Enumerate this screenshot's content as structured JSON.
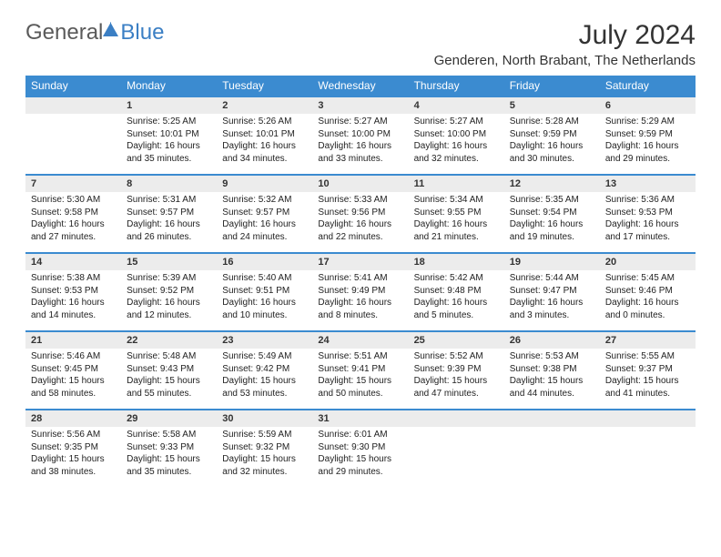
{
  "brand": {
    "part1": "General",
    "part2": "Blue"
  },
  "title": "July 2024",
  "location": "Genderen, North Brabant, The Netherlands",
  "colors": {
    "header_bg": "#3b8bd0",
    "header_text": "#ffffff",
    "daynum_bg": "#ececec",
    "row_border": "#3b8bd0",
    "text": "#222222",
    "logo_gray": "#5a5a5a",
    "logo_blue": "#3b7fc4"
  },
  "day_names": [
    "Sunday",
    "Monday",
    "Tuesday",
    "Wednesday",
    "Thursday",
    "Friday",
    "Saturday"
  ],
  "weeks": [
    {
      "nums": [
        "",
        "1",
        "2",
        "3",
        "4",
        "5",
        "6"
      ],
      "cells": [
        {
          "sunrise": "",
          "sunset": "",
          "daylight": ""
        },
        {
          "sunrise": "Sunrise: 5:25 AM",
          "sunset": "Sunset: 10:01 PM",
          "daylight": "Daylight: 16 hours and 35 minutes."
        },
        {
          "sunrise": "Sunrise: 5:26 AM",
          "sunset": "Sunset: 10:01 PM",
          "daylight": "Daylight: 16 hours and 34 minutes."
        },
        {
          "sunrise": "Sunrise: 5:27 AM",
          "sunset": "Sunset: 10:00 PM",
          "daylight": "Daylight: 16 hours and 33 minutes."
        },
        {
          "sunrise": "Sunrise: 5:27 AM",
          "sunset": "Sunset: 10:00 PM",
          "daylight": "Daylight: 16 hours and 32 minutes."
        },
        {
          "sunrise": "Sunrise: 5:28 AM",
          "sunset": "Sunset: 9:59 PM",
          "daylight": "Daylight: 16 hours and 30 minutes."
        },
        {
          "sunrise": "Sunrise: 5:29 AM",
          "sunset": "Sunset: 9:59 PM",
          "daylight": "Daylight: 16 hours and 29 minutes."
        }
      ]
    },
    {
      "nums": [
        "7",
        "8",
        "9",
        "10",
        "11",
        "12",
        "13"
      ],
      "cells": [
        {
          "sunrise": "Sunrise: 5:30 AM",
          "sunset": "Sunset: 9:58 PM",
          "daylight": "Daylight: 16 hours and 27 minutes."
        },
        {
          "sunrise": "Sunrise: 5:31 AM",
          "sunset": "Sunset: 9:57 PM",
          "daylight": "Daylight: 16 hours and 26 minutes."
        },
        {
          "sunrise": "Sunrise: 5:32 AM",
          "sunset": "Sunset: 9:57 PM",
          "daylight": "Daylight: 16 hours and 24 minutes."
        },
        {
          "sunrise": "Sunrise: 5:33 AM",
          "sunset": "Sunset: 9:56 PM",
          "daylight": "Daylight: 16 hours and 22 minutes."
        },
        {
          "sunrise": "Sunrise: 5:34 AM",
          "sunset": "Sunset: 9:55 PM",
          "daylight": "Daylight: 16 hours and 21 minutes."
        },
        {
          "sunrise": "Sunrise: 5:35 AM",
          "sunset": "Sunset: 9:54 PM",
          "daylight": "Daylight: 16 hours and 19 minutes."
        },
        {
          "sunrise": "Sunrise: 5:36 AM",
          "sunset": "Sunset: 9:53 PM",
          "daylight": "Daylight: 16 hours and 17 minutes."
        }
      ]
    },
    {
      "nums": [
        "14",
        "15",
        "16",
        "17",
        "18",
        "19",
        "20"
      ],
      "cells": [
        {
          "sunrise": "Sunrise: 5:38 AM",
          "sunset": "Sunset: 9:53 PM",
          "daylight": "Daylight: 16 hours and 14 minutes."
        },
        {
          "sunrise": "Sunrise: 5:39 AM",
          "sunset": "Sunset: 9:52 PM",
          "daylight": "Daylight: 16 hours and 12 minutes."
        },
        {
          "sunrise": "Sunrise: 5:40 AM",
          "sunset": "Sunset: 9:51 PM",
          "daylight": "Daylight: 16 hours and 10 minutes."
        },
        {
          "sunrise": "Sunrise: 5:41 AM",
          "sunset": "Sunset: 9:49 PM",
          "daylight": "Daylight: 16 hours and 8 minutes."
        },
        {
          "sunrise": "Sunrise: 5:42 AM",
          "sunset": "Sunset: 9:48 PM",
          "daylight": "Daylight: 16 hours and 5 minutes."
        },
        {
          "sunrise": "Sunrise: 5:44 AM",
          "sunset": "Sunset: 9:47 PM",
          "daylight": "Daylight: 16 hours and 3 minutes."
        },
        {
          "sunrise": "Sunrise: 5:45 AM",
          "sunset": "Sunset: 9:46 PM",
          "daylight": "Daylight: 16 hours and 0 minutes."
        }
      ]
    },
    {
      "nums": [
        "21",
        "22",
        "23",
        "24",
        "25",
        "26",
        "27"
      ],
      "cells": [
        {
          "sunrise": "Sunrise: 5:46 AM",
          "sunset": "Sunset: 9:45 PM",
          "daylight": "Daylight: 15 hours and 58 minutes."
        },
        {
          "sunrise": "Sunrise: 5:48 AM",
          "sunset": "Sunset: 9:43 PM",
          "daylight": "Daylight: 15 hours and 55 minutes."
        },
        {
          "sunrise": "Sunrise: 5:49 AM",
          "sunset": "Sunset: 9:42 PM",
          "daylight": "Daylight: 15 hours and 53 minutes."
        },
        {
          "sunrise": "Sunrise: 5:51 AM",
          "sunset": "Sunset: 9:41 PM",
          "daylight": "Daylight: 15 hours and 50 minutes."
        },
        {
          "sunrise": "Sunrise: 5:52 AM",
          "sunset": "Sunset: 9:39 PM",
          "daylight": "Daylight: 15 hours and 47 minutes."
        },
        {
          "sunrise": "Sunrise: 5:53 AM",
          "sunset": "Sunset: 9:38 PM",
          "daylight": "Daylight: 15 hours and 44 minutes."
        },
        {
          "sunrise": "Sunrise: 5:55 AM",
          "sunset": "Sunset: 9:37 PM",
          "daylight": "Daylight: 15 hours and 41 minutes."
        }
      ]
    },
    {
      "nums": [
        "28",
        "29",
        "30",
        "31",
        "",
        "",
        ""
      ],
      "cells": [
        {
          "sunrise": "Sunrise: 5:56 AM",
          "sunset": "Sunset: 9:35 PM",
          "daylight": "Daylight: 15 hours and 38 minutes."
        },
        {
          "sunrise": "Sunrise: 5:58 AM",
          "sunset": "Sunset: 9:33 PM",
          "daylight": "Daylight: 15 hours and 35 minutes."
        },
        {
          "sunrise": "Sunrise: 5:59 AM",
          "sunset": "Sunset: 9:32 PM",
          "daylight": "Daylight: 15 hours and 32 minutes."
        },
        {
          "sunrise": "Sunrise: 6:01 AM",
          "sunset": "Sunset: 9:30 PM",
          "daylight": "Daylight: 15 hours and 29 minutes."
        },
        {
          "sunrise": "",
          "sunset": "",
          "daylight": ""
        },
        {
          "sunrise": "",
          "sunset": "",
          "daylight": ""
        },
        {
          "sunrise": "",
          "sunset": "",
          "daylight": ""
        }
      ]
    }
  ]
}
